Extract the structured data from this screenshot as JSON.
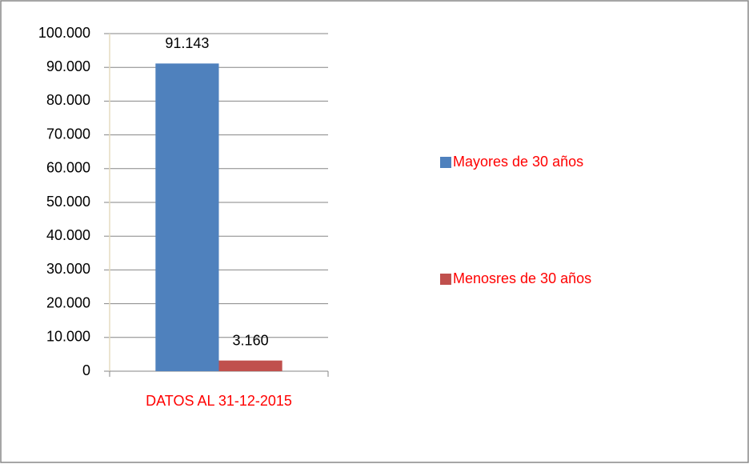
{
  "chart_data": {
    "type": "bar",
    "categories": [
      "DATOS AL 31-12-2015"
    ],
    "series": [
      {
        "name": "Mayores de 30 años",
        "color": "#4f81bd",
        "values": [
          91143
        ],
        "value_labels": [
          "91.143"
        ]
      },
      {
        "name": "Menosres de 30 años",
        "color": "#c0504d",
        "values": [
          3160
        ],
        "value_labels": [
          "3.160"
        ]
      }
    ],
    "ylim": [
      0,
      100000
    ],
    "yticks": [
      0,
      {
        "value": 10000,
        "label": "10.000"
      },
      {
        "value": 20000,
        "label": "20.000"
      },
      {
        "value": 30000,
        "label": "30.000"
      },
      {
        "value": 40000,
        "label": "40.000"
      },
      {
        "value": 50000,
        "label": "50.000"
      },
      {
        "value": 60000,
        "label": "60.000"
      },
      {
        "value": 70000,
        "label": "70.000"
      },
      {
        "value": 80000,
        "label": "80.000"
      },
      {
        "value": 90000,
        "label": "90.000"
      },
      {
        "value": 100000,
        "label": "100.000"
      }
    ],
    "grid": true,
    "legend": "right"
  }
}
